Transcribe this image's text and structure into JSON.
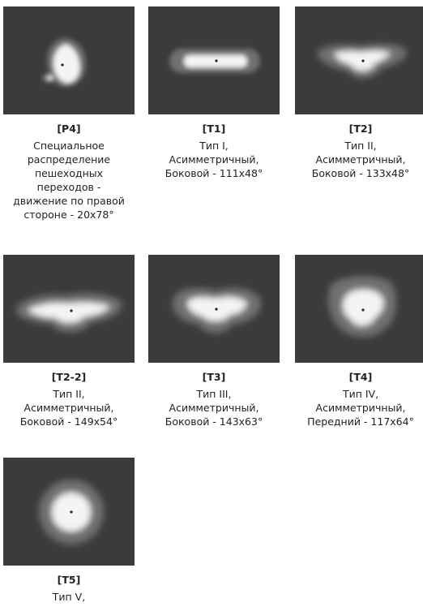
{
  "items": [
    {
      "code": "[P4]",
      "desc": "Специальное\nраспределение\nпешеходных\nпереходов -\nдвижение по правой\nстороне - 20x78°",
      "shape": "p4"
    },
    {
      "code": "[T1]",
      "desc": "Тип I,\nАсимметричный,\nБоковой - 111x48°",
      "shape": "t1"
    },
    {
      "code": "[T2]",
      "desc": "Тип II,\nАсимметричный,\nБоковой - 133x48°",
      "shape": "t2"
    },
    {
      "code": "[T2-2]",
      "desc": "Тип II,\nАсимметричный,\nБоковой - 149x54°",
      "shape": "t22"
    },
    {
      "code": "[T3]",
      "desc": "Тип III,\nАсимметричный,\nБоковой - 143x63°",
      "shape": "t3"
    },
    {
      "code": "[T4]",
      "desc": "Тип IV,\nАсимметричный,\nПередний - 117x64°",
      "shape": "t4"
    },
    {
      "code": "[T5]",
      "desc": "Тип V,",
      "shape": "t5"
    }
  ],
  "colors": {
    "background": "#3b3b3b",
    "outer_glow": "#6f6f6f",
    "core": "#f4f4f4",
    "dot": "#222222"
  }
}
